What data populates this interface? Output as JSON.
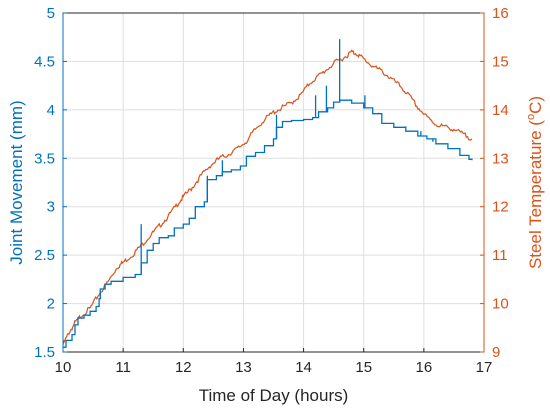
{
  "chart_data": {
    "type": "line",
    "xlabel": "Time of Day (hours)",
    "ylabel_left": "Joint Movement (mm)",
    "ylabel_right": "Steel Temperature (",
    "ylabel_right_sup": "o",
    "ylabel_right_end": "C)",
    "xlim": [
      10,
      17
    ],
    "ylim_left": [
      1.5,
      5
    ],
    "ylim_right": [
      9,
      16
    ],
    "xticks": [
      "10",
      "11",
      "12",
      "13",
      "14",
      "15",
      "16",
      "17"
    ],
    "yticks_left": [
      "1.5",
      "2",
      "2.5",
      "3",
      "3.5",
      "4",
      "4.5",
      "5"
    ],
    "yticks_right": [
      "9",
      "10",
      "11",
      "12",
      "13",
      "14",
      "15",
      "16"
    ],
    "grid": true,
    "colors": {
      "left_axis": "#0072BD",
      "right_axis": "#D95319",
      "grid": "#dfdfdf",
      "axes": "#262626"
    },
    "series": [
      {
        "axis": "left",
        "points": [
          [
            10.0,
            1.55
          ],
          [
            10.05,
            1.62
          ],
          [
            10.15,
            1.68
          ],
          [
            10.2,
            1.78
          ],
          [
            10.25,
            1.85
          ],
          [
            10.35,
            1.88
          ],
          [
            10.45,
            1.92
          ],
          [
            10.55,
            1.97
          ],
          [
            10.6,
            2.05
          ],
          [
            10.62,
            2.15
          ],
          [
            10.7,
            2.2
          ],
          [
            10.8,
            2.23
          ],
          [
            11.0,
            2.27
          ],
          [
            11.2,
            2.3
          ],
          [
            11.3,
            2.42
          ],
          [
            11.4,
            2.55
          ],
          [
            11.5,
            2.62
          ],
          [
            11.6,
            2.68
          ],
          [
            11.75,
            2.7
          ],
          [
            11.85,
            2.78
          ],
          [
            12.0,
            2.82
          ],
          [
            12.1,
            2.88
          ],
          [
            12.2,
            3.0
          ],
          [
            12.35,
            3.05
          ],
          [
            12.4,
            3.28
          ],
          [
            12.55,
            3.32
          ],
          [
            12.65,
            3.36
          ],
          [
            12.8,
            3.38
          ],
          [
            12.95,
            3.42
          ],
          [
            13.05,
            3.52
          ],
          [
            13.2,
            3.56
          ],
          [
            13.35,
            3.63
          ],
          [
            13.5,
            3.7
          ],
          [
            13.55,
            3.82
          ],
          [
            13.65,
            3.88
          ],
          [
            13.8,
            3.89
          ],
          [
            14.0,
            3.9
          ],
          [
            14.15,
            3.92
          ],
          [
            14.25,
            3.98
          ],
          [
            14.4,
            4.02
          ],
          [
            14.5,
            4.08
          ],
          [
            14.6,
            4.1
          ],
          [
            14.8,
            4.07
          ],
          [
            15.0,
            4.02
          ],
          [
            15.15,
            3.96
          ],
          [
            15.3,
            3.86
          ],
          [
            15.5,
            3.82
          ],
          [
            15.7,
            3.78
          ],
          [
            15.9,
            3.73
          ],
          [
            16.05,
            3.7
          ],
          [
            16.2,
            3.65
          ],
          [
            16.4,
            3.6
          ],
          [
            16.6,
            3.53
          ],
          [
            16.75,
            3.49
          ],
          [
            16.8,
            3.48
          ]
        ],
        "spikes": [
          [
            11.3,
            2.82
          ],
          [
            12.4,
            3.32
          ],
          [
            12.65,
            3.48
          ],
          [
            13.55,
            3.95
          ],
          [
            14.2,
            4.15
          ],
          [
            14.38,
            4.25
          ],
          [
            14.6,
            4.73
          ],
          [
            15.02,
            4.15
          ],
          [
            15.25,
            3.97
          ],
          [
            15.7,
            3.83
          ],
          [
            15.95,
            3.78
          ],
          [
            16.15,
            3.67
          ]
        ]
      },
      {
        "axis": "right",
        "points": [
          [
            10.0,
            9.15
          ],
          [
            10.1,
            9.4
          ],
          [
            10.2,
            9.6
          ],
          [
            10.3,
            9.75
          ],
          [
            10.45,
            9.9
          ],
          [
            10.6,
            10.2
          ],
          [
            10.75,
            10.45
          ],
          [
            10.9,
            10.75
          ],
          [
            11.0,
            10.85
          ],
          [
            11.15,
            11.0
          ],
          [
            11.3,
            11.2
          ],
          [
            11.45,
            11.4
          ],
          [
            11.6,
            11.6
          ],
          [
            11.75,
            11.8
          ],
          [
            11.9,
            12.05
          ],
          [
            12.0,
            12.2
          ],
          [
            12.15,
            12.4
          ],
          [
            12.3,
            12.65
          ],
          [
            12.45,
            12.85
          ],
          [
            12.6,
            13.0
          ],
          [
            12.75,
            13.08
          ],
          [
            12.9,
            13.2
          ],
          [
            13.05,
            13.35
          ],
          [
            13.2,
            13.6
          ],
          [
            13.35,
            13.8
          ],
          [
            13.5,
            13.95
          ],
          [
            13.65,
            14.05
          ],
          [
            13.8,
            14.15
          ],
          [
            13.95,
            14.3
          ],
          [
            14.1,
            14.55
          ],
          [
            14.25,
            14.7
          ],
          [
            14.4,
            14.85
          ],
          [
            14.55,
            15.0
          ],
          [
            14.7,
            15.1
          ],
          [
            14.8,
            15.2
          ],
          [
            14.9,
            15.15
          ],
          [
            15.0,
            15.05
          ],
          [
            15.15,
            14.9
          ],
          [
            15.3,
            14.8
          ],
          [
            15.45,
            14.65
          ],
          [
            15.6,
            14.5
          ],
          [
            15.75,
            14.3
          ],
          [
            15.9,
            14.05
          ],
          [
            16.05,
            13.85
          ],
          [
            16.2,
            13.7
          ],
          [
            16.35,
            13.65
          ],
          [
            16.5,
            13.6
          ],
          [
            16.65,
            13.5
          ],
          [
            16.8,
            13.4
          ]
        ]
      }
    ]
  }
}
